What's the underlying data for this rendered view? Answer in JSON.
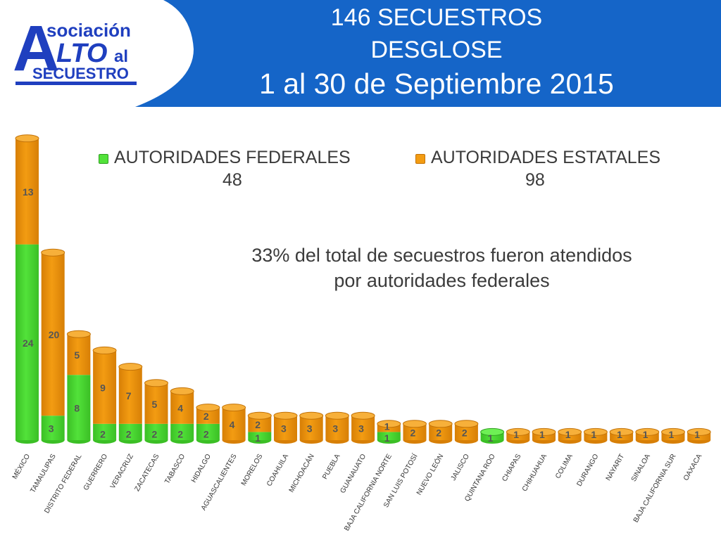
{
  "header": {
    "logo": {
      "line1": "sociación",
      "big_a": "A",
      "big_lto": "LTO",
      "al": "al",
      "line3": "SECUESTRO"
    },
    "title_line1": "146 SECUESTROS",
    "title_line2": "DESGLOSE",
    "title_line3": "1 al 30 de Septiembre 2015"
  },
  "note": {
    "line1": "33% del total de secuestros fueron  atendidos",
    "line2": "por autoridades federales"
  },
  "colors": {
    "federal": "#52e23a",
    "estatal": "#f39c12",
    "header_blue": "#1565c8"
  },
  "chart_data": {
    "type": "bar",
    "stacked": true,
    "categories": [
      "MÉXICO",
      "TAMAULIPAS",
      "DISTRITO FEDERAL",
      "GUERRERO",
      "VERACRUZ",
      "ZACATECAS",
      "TABASCO",
      "HIDALGO",
      "AGUASCALIENTES",
      "MORELOS",
      "COAHUILA",
      "MICHOACÁN",
      "PUEBLA",
      "GUANAUATO",
      "BAJA CALIFORNIA NORTE",
      "SAN LUIS POTOSÍ",
      "NUEVO LEÓN",
      "JALISCO",
      "QUINTANA ROO",
      "CHIAPAS",
      "CHIHUAHUA",
      "COLIMA",
      "DURANGO",
      "NAYARIT",
      "SINALOA",
      "BAJA CALIFORNIA SUR",
      "OAXACA"
    ],
    "series": [
      {
        "name": "AUTORIDADES FEDERALES",
        "total_label": "48",
        "values": [
          24,
          3,
          8,
          2,
          2,
          2,
          2,
          2,
          0,
          1,
          0,
          0,
          0,
          0,
          1,
          0,
          0,
          0,
          1,
          0,
          0,
          0,
          0,
          0,
          0,
          0,
          0
        ]
      },
      {
        "name": "AUTORIDADES ESTATALES",
        "total_label": "98",
        "values": [
          13,
          20,
          5,
          9,
          7,
          5,
          4,
          2,
          4,
          2,
          3,
          3,
          3,
          3,
          1,
          2,
          2,
          2,
          0,
          1,
          1,
          1,
          1,
          1,
          1,
          1,
          1
        ]
      }
    ]
  }
}
